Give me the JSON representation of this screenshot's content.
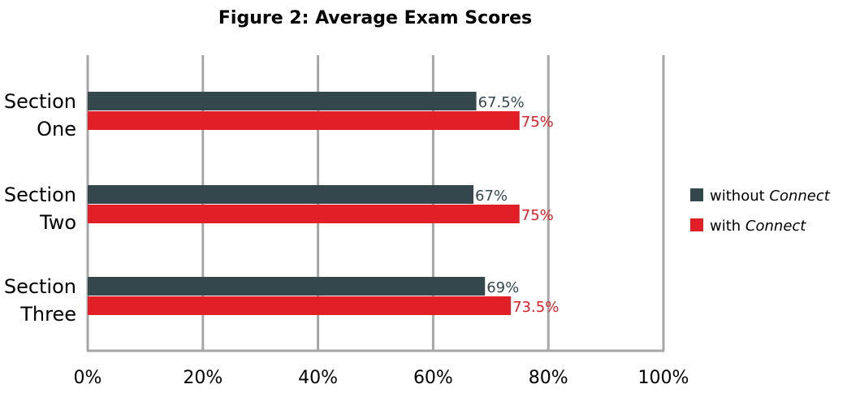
{
  "chart_data": {
    "type": "bar",
    "orientation": "horizontal",
    "title": "Figure 2: Average Exam Scores",
    "categories": [
      [
        "Section",
        "One"
      ],
      [
        "Section",
        "Two"
      ],
      [
        "Section",
        "Three"
      ]
    ],
    "series": [
      {
        "name_plain": "without ",
        "name_italic": "Connect",
        "color": "#34474c",
        "label_color": "#34474c",
        "values": [
          67.5,
          67,
          69
        ],
        "labels": [
          "67.5%",
          "67%",
          "69%"
        ]
      },
      {
        "name_plain": "with ",
        "name_italic": "Connect",
        "color": "#e21e26",
        "label_color": "#e21e26",
        "values": [
          75,
          75,
          73.5
        ],
        "labels": [
          "75%",
          "75%",
          "73.5%"
        ]
      }
    ],
    "xlim": [
      0,
      100
    ],
    "xticks": [
      "0%",
      "20%",
      "40%",
      "60%",
      "80%",
      "100%"
    ],
    "xtick_values": [
      0,
      20,
      40,
      60,
      80,
      100
    ],
    "grid": true,
    "gridline_color": "#a6a6a6",
    "legend_position": "right"
  }
}
